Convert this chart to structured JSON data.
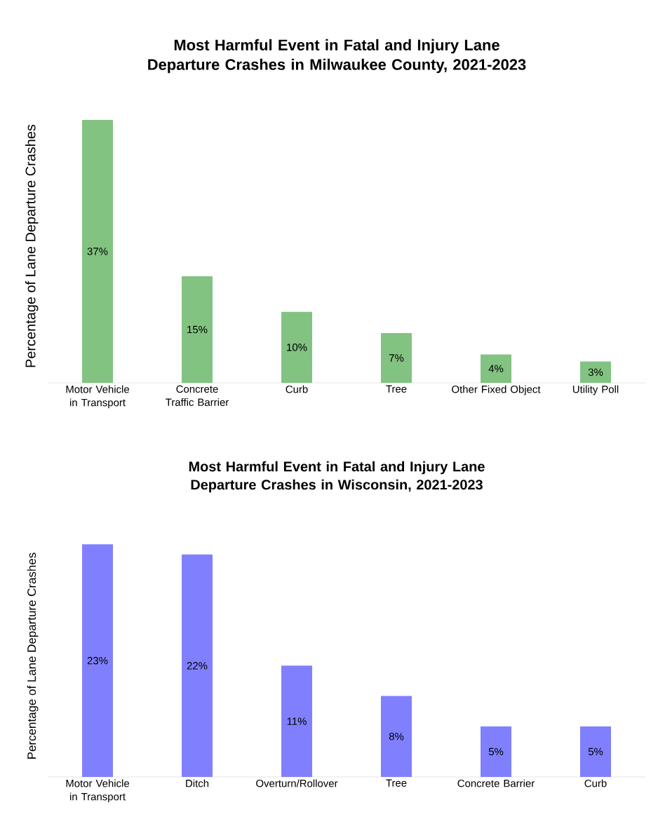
{
  "chart_data": [
    {
      "type": "bar",
      "title": "Most Harmful Event in Fatal and Injury Lane Departure Crashes in Milwaukee County, 2021-2023",
      "ylabel": "Percentage of Lane Departure Crashes",
      "categories": [
        "Motor Vehicle in Transport",
        "Concrete Traffic Barrier",
        "Curb",
        "Tree",
        "Other Fixed Object",
        "Utility Poll"
      ],
      "values": [
        37,
        15,
        10,
        7,
        4,
        3
      ],
      "value_labels": [
        "37%",
        "15%",
        "10%",
        "7%",
        "4%",
        "3%"
      ],
      "color": "#82c382"
    },
    {
      "type": "bar",
      "title": "Most Harmful Event in Fatal and Injury Lane Departure Crashes in Wisconsin, 2021-2023",
      "ylabel": "Percentage of Lane Departure Crashes",
      "categories": [
        "Motor Vehicle in Transport",
        "Ditch",
        "Overturn/Rollover",
        "Tree",
        "Concrete Barrier",
        "Curb"
      ],
      "values": [
        23,
        22,
        11,
        8,
        5,
        5
      ],
      "value_labels": [
        "23%",
        "22%",
        "11%",
        "8%",
        "5%",
        "5%"
      ],
      "color": "#8080ff"
    }
  ]
}
